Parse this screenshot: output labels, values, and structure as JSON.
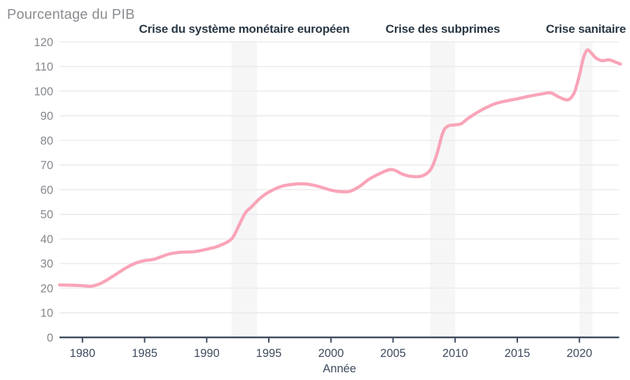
{
  "title": "Pourcentage du PIB",
  "xlabel": "Année",
  "colors": {
    "line": "#f9a4b8",
    "title": "#8a8c90",
    "axis": "#3f4b5e",
    "xtick_label": "#3f4b5e",
    "ytick_label": "#84878d",
    "grid": "#ebebed",
    "band": "#f6f6f7",
    "annotation": "#283744",
    "background": "#ffffff"
  },
  "chart_data": {
    "type": "line",
    "title": "Pourcentage du PIB",
    "xlabel": "Année",
    "ylabel": "Pourcentage du PIB",
    "xlim": [
      1978.15,
      2023.2
    ],
    "ylim": [
      0,
      120
    ],
    "xticks": [
      1980,
      1985,
      1990,
      1995,
      2000,
      2005,
      2010,
      2015,
      2020
    ],
    "yticks": [
      0,
      10,
      20,
      30,
      40,
      50,
      60,
      70,
      80,
      90,
      100,
      110,
      120
    ],
    "grid": true,
    "legend": false,
    "bands": [
      {
        "from": 1992.0,
        "to": 1994.05,
        "label": "Crise du système monétaire européen"
      },
      {
        "from": 2008.0,
        "to": 2010.0,
        "label": "Crise des subprimes"
      },
      {
        "from": 2020.0,
        "to": 2021.05,
        "label": "Crise sanitaire"
      }
    ],
    "series": [
      {
        "name": "Pourcentage du PIB",
        "points": [
          [
            1978.15,
            21.3
          ],
          [
            1979,
            21.2
          ],
          [
            1980,
            21.0
          ],
          [
            1980.7,
            20.8
          ],
          [
            1981.5,
            22.0
          ],
          [
            1982.5,
            25.0
          ],
          [
            1983.5,
            28.2
          ],
          [
            1984.3,
            30.2
          ],
          [
            1985,
            31.2
          ],
          [
            1985.8,
            31.8
          ],
          [
            1987,
            33.9
          ],
          [
            1988,
            34.6
          ],
          [
            1989,
            34.8
          ],
          [
            1990,
            35.8
          ],
          [
            1991,
            37.2
          ],
          [
            1992,
            40.0
          ],
          [
            1992.6,
            45.5
          ],
          [
            1993.1,
            50.5
          ],
          [
            1993.6,
            53.0
          ],
          [
            1994.3,
            56.5
          ],
          [
            1995,
            59.0
          ],
          [
            1996,
            61.3
          ],
          [
            1997,
            62.2
          ],
          [
            1998,
            62.3
          ],
          [
            1999,
            61.3
          ],
          [
            2000,
            59.8
          ],
          [
            2000.7,
            59.2
          ],
          [
            2001.5,
            59.3
          ],
          [
            2002.3,
            61.3
          ],
          [
            2003,
            64.0
          ],
          [
            2004,
            66.7
          ],
          [
            2004.9,
            68.2
          ],
          [
            2005.8,
            66.2
          ],
          [
            2006.5,
            65.4
          ],
          [
            2007.3,
            65.5
          ],
          [
            2008,
            68.0
          ],
          [
            2008.5,
            74.0
          ],
          [
            2009,
            83.0
          ],
          [
            2009.4,
            85.8
          ],
          [
            2010,
            86.3
          ],
          [
            2010.5,
            86.8
          ],
          [
            2011,
            88.8
          ],
          [
            2012,
            92.0
          ],
          [
            2013,
            94.5
          ],
          [
            2013.8,
            95.7
          ],
          [
            2015,
            96.9
          ],
          [
            2016,
            98.0
          ],
          [
            2017,
            98.9
          ],
          [
            2017.7,
            99.3
          ],
          [
            2018.4,
            97.5
          ],
          [
            2019.1,
            96.5
          ],
          [
            2019.6,
            99.5
          ],
          [
            2020.0,
            106.5
          ],
          [
            2020.3,
            113.0
          ],
          [
            2020.6,
            116.6
          ],
          [
            2020.9,
            115.8
          ],
          [
            2021.3,
            113.6
          ],
          [
            2021.8,
            112.4
          ],
          [
            2022.4,
            112.7
          ],
          [
            2022.9,
            111.8
          ],
          [
            2023.3,
            111.0
          ]
        ]
      }
    ]
  }
}
